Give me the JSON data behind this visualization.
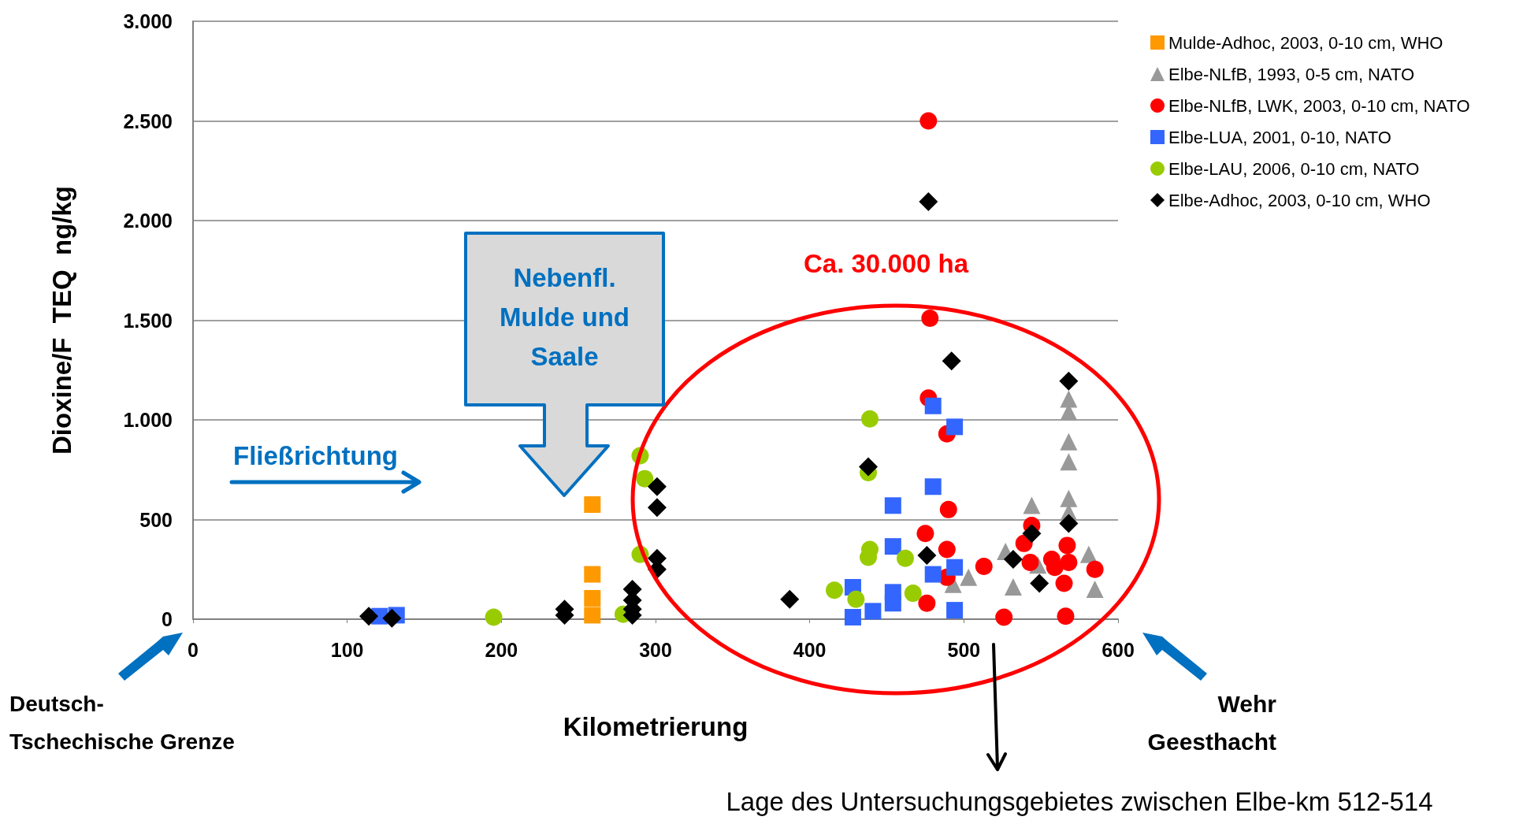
{
  "chart_data": {
    "type": "scatter",
    "xlabel": "Kilometrierung",
    "ylabel": "Dioxine/F  TEQ  ng/kg",
    "xlim": [
      0,
      600
    ],
    "xticks": [
      0,
      100,
      200,
      300,
      400,
      500,
      600
    ],
    "ylim": [
      0,
      3000
    ],
    "yticks": [
      0,
      500,
      {
        "value": 1000,
        "label": "1.000"
      },
      {
        "value": 1500,
        "label": "1.500"
      },
      {
        "value": 2000,
        "label": "2.000"
      },
      {
        "value": 2500,
        "label": "2.500"
      },
      {
        "value": 3000,
        "label": "3.000"
      }
    ],
    "grid": "y",
    "legend": "top right",
    "annotations": [
      "Nebenfl. Mulde und Saale",
      "Fließrichtung",
      "Ca. 30.000 ha",
      "Deutsch-Tschechische Grenze",
      "Wehr Geesthacht",
      "Lage des Untersuchungsgebietes zwischen Elbe-km 512-514"
    ],
    "series": [
      {
        "name": "Mulde-Adhoc, 2003, 0-10 cm, WHO",
        "color": "#ff9900",
        "marker": "square",
        "x": [
          259,
          259,
          259,
          259
        ],
        "values": [
          575,
          225,
          105,
          20
        ]
      },
      {
        "name": "Elbe-NLfB, 1993, 0-5 cm, NATO",
        "color": "#999999",
        "marker": "triangle",
        "x": [
          493,
          503,
          527,
          532,
          544,
          548,
          568,
          568,
          568,
          568,
          568,
          568,
          581,
          585
        ],
        "values": [
          175,
          210,
          340,
          162,
          571,
          272,
          1105,
          1040,
          890,
          790,
          606,
          537,
          325,
          150
        ]
      },
      {
        "name": "Elbe-NLfB, LWK, 2003, 0-10 cm, NATO",
        "color": "#ff0000",
        "marker": "circle",
        "x": [
          477,
          478,
          477,
          489,
          490,
          475,
          489,
          489,
          476,
          513,
          526,
          539,
          544,
          543,
          557,
          559,
          565,
          568,
          567,
          566,
          585
        ],
        "values": [
          2500,
          1510,
          1110,
          930,
          550,
          430,
          350,
          210,
          80,
          265,
          10,
          380,
          470,
          285,
          300,
          260,
          180,
          285,
          370,
          15,
          250
        ]
      },
      {
        "name": "Elbe-LUA, 2001, 0-10, NATO",
        "color": "#3366ff",
        "marker": "square",
        "x": [
          121,
          132,
          428,
          428,
          441,
          454,
          454,
          454,
          454,
          480,
          480,
          480,
          494,
          494,
          494
        ],
        "values": [
          15,
          20,
          160,
          10,
          40,
          570,
          365,
          135,
          80,
          1070,
          665,
          225,
          965,
          260,
          45
        ]
      },
      {
        "name": "Elbe-LAU, 2006, 0-10 cm, NATO",
        "color": "#99cc00",
        "marker": "circle",
        "x": [
          195,
          279,
          290,
          293,
          290,
          416,
          430,
          438,
          439,
          439,
          438,
          462,
          467
        ],
        "values": [
          10,
          25,
          820,
          705,
          325,
          145,
          100,
          735,
          1005,
          350,
          310,
          305,
          130
        ]
      },
      {
        "name": "Elbe-Adhoc, 2003, 0-10 cm, WHO",
        "color": "#000000",
        "marker": "diamond",
        "x": [
          114,
          129,
          241,
          241,
          285,
          285,
          285,
          285,
          301,
          301,
          301,
          301,
          387,
          438,
          476,
          477,
          492,
          532,
          544,
          549,
          568,
          568
        ],
        "values": [
          15,
          5,
          50,
          20,
          150,
          95,
          50,
          20,
          665,
          560,
          305,
          250,
          100,
          765,
          320,
          2095,
          1295,
          300,
          430,
          180,
          1195,
          480
        ]
      }
    ]
  }
}
